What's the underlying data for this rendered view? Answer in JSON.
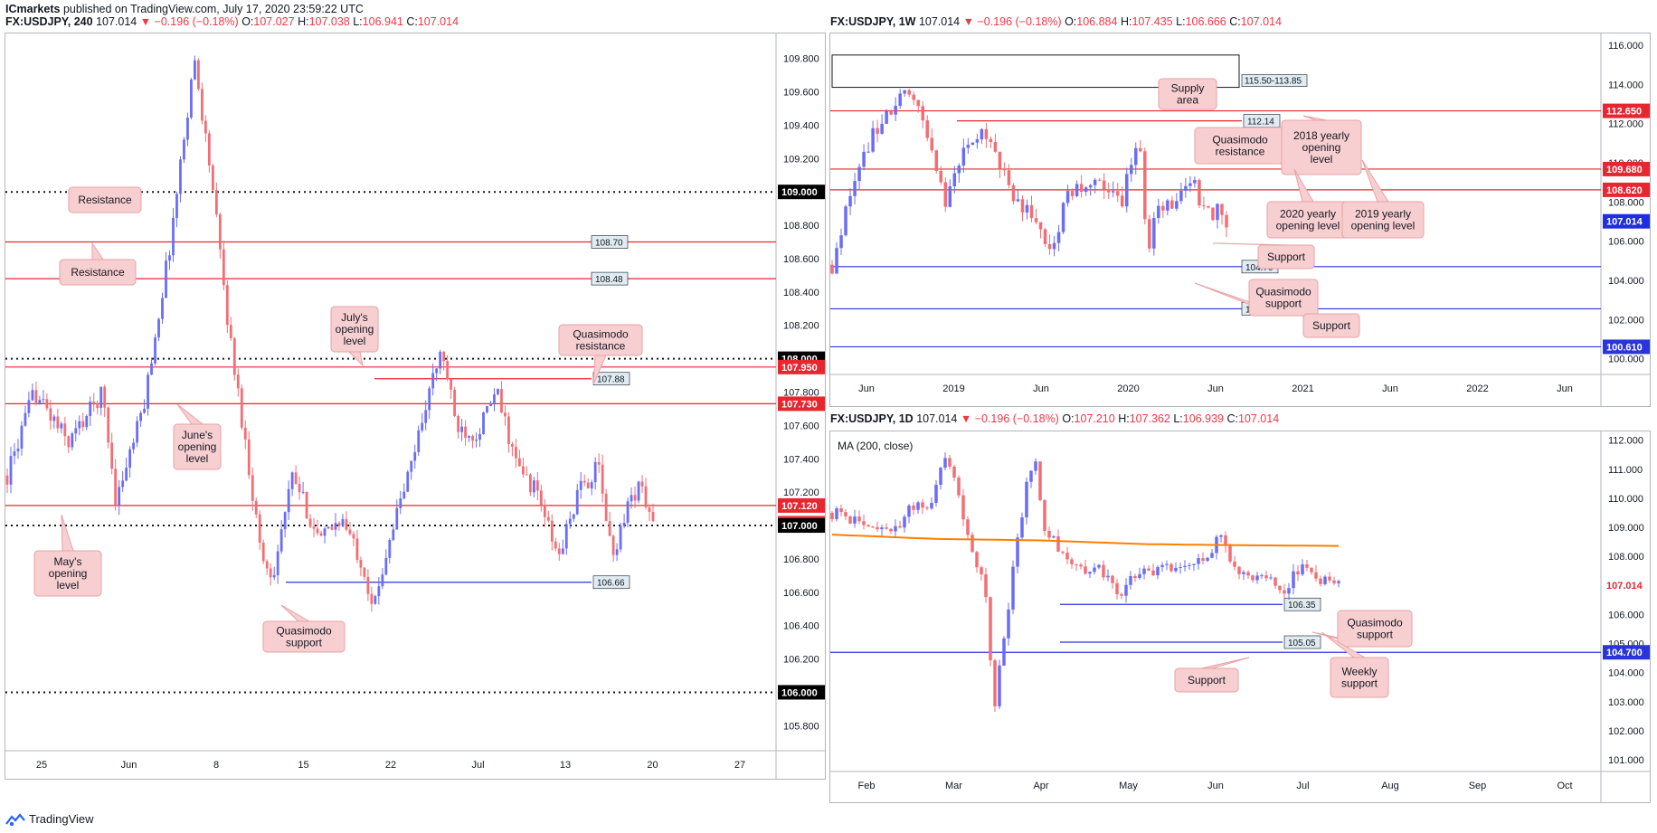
{
  "header": {
    "author": "ICmarkets",
    "published_text": "published on TradingView.com, July 17, 2020 23:59:22 UTC"
  },
  "footer": {
    "brand": "TradingView",
    "logo_icon": "tradingview-logo-icon"
  },
  "colors": {
    "up": "#6a6df5",
    "down": "#f36e74",
    "red_line": "#e8262f",
    "blue_line": "#2a35d8",
    "ma": "#ff7f00",
    "callout_bg": "#f8cfd1",
    "callout_border": "#e7a1a5"
  },
  "chart_data": [
    {
      "id": "h4",
      "type": "candlestick",
      "symbol": "FX:USDJPY, 240",
      "last": "107.014",
      "change": "▼ −0.196 (−0.18%)",
      "ohlc": {
        "O": "107.027",
        "H": "107.038",
        "L": "106.941",
        "C": "107.014"
      },
      "ylim": [
        105.65,
        109.95
      ],
      "yticks": [
        "105.800",
        "106.000",
        "106.200",
        "106.400",
        "106.600",
        "106.800",
        "107.000",
        "107.200",
        "107.400",
        "107.600",
        "107.800",
        "108.000",
        "108.200",
        "108.400",
        "108.600",
        "108.800",
        "109.000",
        "109.200",
        "109.400",
        "109.600",
        "109.800"
      ],
      "xticks": [
        "25",
        "Jun",
        "8",
        "15",
        "22",
        "Jul",
        "13",
        "20",
        "27"
      ],
      "series_path": [
        [
          0,
          107.3
        ],
        [
          8,
          107.8
        ],
        [
          18,
          107.5
        ],
        [
          28,
          107.8
        ],
        [
          32,
          107.15
        ],
        [
          40,
          107.7
        ],
        [
          48,
          108.7
        ],
        [
          55,
          109.8
        ],
        [
          60,
          109.1
        ],
        [
          65,
          108.2
        ],
        [
          70,
          107.5
        ],
        [
          75,
          106.8
        ],
        [
          78,
          106.7
        ],
        [
          84,
          107.3
        ],
        [
          92,
          106.9
        ],
        [
          98,
          107.05
        ],
        [
          104,
          106.8
        ],
        [
          108,
          106.5
        ],
        [
          112,
          106.9
        ],
        [
          118,
          107.3
        ],
        [
          124,
          107.8
        ],
        [
          128,
          108.05
        ],
        [
          132,
          107.6
        ],
        [
          138,
          107.55
        ],
        [
          144,
          107.8
        ],
        [
          150,
          107.35
        ],
        [
          156,
          107.2
        ],
        [
          162,
          106.8
        ],
        [
          168,
          107.2
        ],
        [
          174,
          107.35
        ],
        [
          178,
          106.8
        ],
        [
          182,
          107.1
        ],
        [
          186,
          107.25
        ],
        [
          190,
          107.014
        ]
      ],
      "levels": [
        {
          "kind": "dotted",
          "value": 109.0,
          "label": "109.000"
        },
        {
          "kind": "red",
          "value": 108.7,
          "label": "108.70"
        },
        {
          "kind": "red",
          "value": 108.48,
          "label": "108.48"
        },
        {
          "kind": "dotted",
          "value": 108.0,
          "label": "108.000"
        },
        {
          "kind": "red_tag",
          "value": 107.95,
          "label": "107.950"
        },
        {
          "kind": "red_short",
          "value": 107.88,
          "label": "107.88"
        },
        {
          "kind": "red_tag",
          "value": 107.73,
          "label": "107.730"
        },
        {
          "kind": "red_tag",
          "value": 107.12,
          "label": "107.120"
        },
        {
          "kind": "price",
          "value": 107.014,
          "label": "107.014"
        },
        {
          "kind": "dotted",
          "value": 107.0,
          "label": "107.000"
        },
        {
          "kind": "blue_short",
          "value": 106.66,
          "label": "106.66"
        },
        {
          "kind": "dotted",
          "value": 106.0,
          "label": "106.000"
        }
      ],
      "annotations": [
        {
          "lines": [
            "Resistance"
          ]
        },
        {
          "lines": [
            "Resistance"
          ]
        },
        {
          "lines": [
            "July's",
            "opening",
            "level"
          ]
        },
        {
          "lines": [
            "Quasimodo",
            "resistance"
          ]
        },
        {
          "lines": [
            "June's",
            "opening",
            "level"
          ]
        },
        {
          "lines": [
            "May's",
            "opening",
            "level"
          ]
        },
        {
          "lines": [
            "Quasimodo",
            "support"
          ]
        }
      ]
    },
    {
      "id": "w1",
      "type": "candlestick",
      "symbol": "FX:USDJPY, 1W",
      "last": "107.014",
      "change": "▼ −0.196 (−0.18%)",
      "ohlc": {
        "O": "106.884",
        "H": "107.435",
        "L": "106.666",
        "C": "107.014"
      },
      "ylim": [
        99.2,
        116.6
      ],
      "yticks": [
        "100.000",
        "102.000",
        "104.000",
        "106.000",
        "108.000",
        "110.000",
        "112.000",
        "114.000",
        "116.000"
      ],
      "xticks": [
        "Jun",
        "2019",
        "Jun",
        "2020",
        "Jun",
        "2021",
        "Jun",
        "2022",
        "Jun"
      ],
      "series_path": [
        [
          0,
          104.8
        ],
        [
          6,
          110
        ],
        [
          12,
          112.5
        ],
        [
          18,
          113.5
        ],
        [
          22,
          111.5
        ],
        [
          26,
          108
        ],
        [
          30,
          110.5
        ],
        [
          34,
          111.6
        ],
        [
          38,
          110
        ],
        [
          42,
          108.2
        ],
        [
          46,
          107
        ],
        [
          50,
          105.8
        ],
        [
          54,
          108.3
        ],
        [
          58,
          109
        ],
        [
          62,
          108.7
        ],
        [
          66,
          108
        ],
        [
          70,
          111.6
        ],
        [
          72,
          105
        ],
        [
          74,
          108.3
        ],
        [
          78,
          107.3
        ],
        [
          82,
          109.5
        ],
        [
          84,
          107.4
        ],
        [
          88,
          107.5
        ],
        [
          90,
          107.014
        ]
      ],
      "levels": [
        {
          "kind": "red_tag",
          "value": 112.65,
          "label": "112.650"
        },
        {
          "kind": "red_short",
          "value": 112.14,
          "label": "112.14"
        },
        {
          "kind": "red_tag",
          "value": 109.68,
          "label": "109.680"
        },
        {
          "kind": "red_tag",
          "value": 108.62,
          "label": "108.620"
        },
        {
          "kind": "price",
          "value": 107.014,
          "label": "107.014"
        },
        {
          "kind": "blue",
          "value": 104.7,
          "label": "104.70"
        },
        {
          "kind": "blue",
          "value": 102.55,
          "label": "102.55"
        },
        {
          "kind": "blue_tag",
          "value": 100.61,
          "label": "100.610"
        }
      ],
      "supply_area": {
        "from": 113.85,
        "to": 115.5,
        "label": "115.50-113.85"
      },
      "annotations": [
        {
          "lines": [
            "Supply",
            "area"
          ]
        },
        {
          "lines": [
            "Quasimodo",
            "resistance"
          ]
        },
        {
          "lines": [
            "2018 yearly",
            "opening",
            "level"
          ]
        },
        {
          "lines": [
            "2020 yearly",
            "opening level"
          ]
        },
        {
          "lines": [
            "2019 yearly",
            "opening level"
          ]
        },
        {
          "lines": [
            "Support"
          ]
        },
        {
          "lines": [
            "Quasimodo",
            "support"
          ]
        },
        {
          "lines": [
            "Support"
          ]
        }
      ]
    },
    {
      "id": "d1",
      "type": "candlestick",
      "symbol": "FX:USDJPY, 1D",
      "last": "107.014",
      "change": "▼ −0.196 (−0.18%)",
      "ohlc": {
        "O": "107.210",
        "H": "107.362",
        "L": "106.939",
        "C": "107.014"
      },
      "indicator": "MA (200, close)",
      "ylim": [
        100.6,
        112.3
      ],
      "yticks": [
        "101.000",
        "102.000",
        "103.000",
        "104.000",
        "105.000",
        "106.000",
        "107.000",
        "108.000",
        "109.000",
        "110.000",
        "111.000",
        "112.000"
      ],
      "xticks": [
        "Feb",
        "Mar",
        "Apr",
        "May",
        "Jun",
        "Jul",
        "Aug",
        "Sep",
        "Oct"
      ],
      "series_path": [
        [
          0,
          109.5
        ],
        [
          10,
          109.2
        ],
        [
          16,
          108.7
        ],
        [
          22,
          109.6
        ],
        [
          28,
          109.9
        ],
        [
          32,
          111.6
        ],
        [
          36,
          110
        ],
        [
          40,
          108.2
        ],
        [
          44,
          106.5
        ],
        [
          46,
          102.5
        ],
        [
          48,
          104.5
        ],
        [
          52,
          108
        ],
        [
          56,
          111
        ],
        [
          58,
          111.4
        ],
        [
          60,
          108.8
        ],
        [
          64,
          108.4
        ],
        [
          70,
          107.6
        ],
        [
          76,
          107.5
        ],
        [
          82,
          106.7
        ],
        [
          88,
          107.6
        ],
        [
          94,
          107.5
        ],
        [
          100,
          107.8
        ],
        [
          106,
          107.7
        ],
        [
          110,
          108.9
        ],
        [
          113,
          108
        ],
        [
          118,
          107.2
        ],
        [
          124,
          107.3
        ],
        [
          128,
          106.8
        ],
        [
          134,
          107.7
        ],
        [
          138,
          107.3
        ],
        [
          144,
          107.014
        ]
      ],
      "ma_path": [
        [
          0,
          108.75
        ],
        [
          30,
          108.6
        ],
        [
          60,
          108.55
        ],
        [
          90,
          108.42
        ],
        [
          120,
          108.38
        ],
        [
          144,
          108.36
        ]
      ],
      "levels": [
        {
          "kind": "price",
          "value": 107.014,
          "label": "107.014"
        },
        {
          "kind": "blue_short",
          "value": 106.35,
          "label": "106.35"
        },
        {
          "kind": "blue_short",
          "value": 105.05,
          "label": "105.05"
        },
        {
          "kind": "blue_tag",
          "value": 104.7,
          "label": "104.700"
        }
      ],
      "annotations": [
        {
          "lines": [
            "Quasimodo",
            "support"
          ]
        },
        {
          "lines": [
            "Weekly",
            "support"
          ]
        },
        {
          "lines": [
            "Support"
          ]
        }
      ]
    }
  ]
}
